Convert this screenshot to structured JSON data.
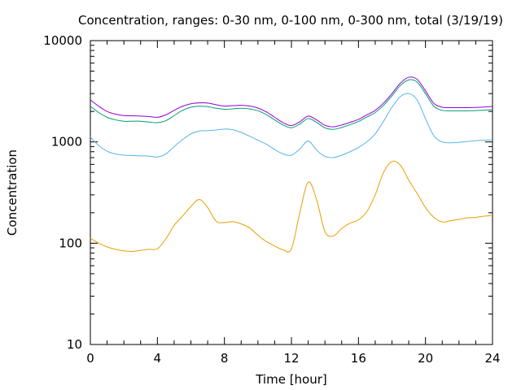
{
  "chart_data": {
    "type": "line",
    "title": "Concentration, ranges: 0-30 nm, 0-100 nm, 0-300 nm, total (3/19/19)",
    "xlabel": "Time [hour]",
    "ylabel": "Concentration",
    "xlim": [
      0,
      24
    ],
    "ylim": [
      10,
      10000
    ],
    "yscale": "log",
    "grid": false,
    "legend": "none",
    "x_ticks": [
      "0",
      "4",
      "8",
      "12",
      "16",
      "20",
      "24"
    ],
    "y_ticks": [
      "10",
      "100",
      "1000",
      "10000"
    ],
    "x": [
      0,
      0.5,
      1,
      1.5,
      2,
      2.5,
      3,
      3.5,
      4,
      4.5,
      5,
      5.5,
      6,
      6.5,
      7,
      7.5,
      8,
      8.5,
      9,
      9.5,
      10,
      10.5,
      11,
      11.5,
      12,
      12.5,
      13,
      13.5,
      14,
      14.5,
      15,
      15.5,
      16,
      16.5,
      17,
      17.5,
      18,
      18.5,
      19,
      19.5,
      20,
      20.5,
      21,
      21.5,
      22,
      22.5,
      23,
      23.5,
      24
    ],
    "series": [
      {
        "color": "#e69f00",
        "values": [
          112,
          100,
          92,
          87,
          84,
          83,
          85,
          87,
          88,
          110,
          150,
          185,
          230,
          270,
          225,
          165,
          160,
          163,
          155,
          142,
          120,
          104,
          94,
          86,
          88,
          200,
          400,
          270,
          130,
          118,
          140,
          158,
          170,
          205,
          300,
          500,
          640,
          590,
          420,
          310,
          225,
          180,
          162,
          167,
          172,
          178,
          180,
          185,
          188
        ]
      },
      {
        "color": "#56b4e9",
        "values": [
          1120,
          920,
          810,
          760,
          740,
          735,
          728,
          725,
          710,
          760,
          900,
          1050,
          1200,
          1280,
          1290,
          1310,
          1340,
          1320,
          1240,
          1140,
          1040,
          950,
          840,
          760,
          740,
          850,
          1020,
          830,
          720,
          700,
          740,
          800,
          880,
          1000,
          1200,
          1600,
          2200,
          2800,
          3000,
          2600,
          1700,
          1150,
          1000,
          980,
          990,
          1010,
          1030,
          1040,
          1050
        ]
      },
      {
        "color": "#009e73",
        "values": [
          2250,
          1950,
          1750,
          1650,
          1600,
          1600,
          1600,
          1570,
          1550,
          1620,
          1820,
          2050,
          2200,
          2250,
          2230,
          2150,
          2100,
          2120,
          2150,
          2120,
          2030,
          1860,
          1650,
          1470,
          1380,
          1500,
          1700,
          1560,
          1380,
          1330,
          1390,
          1480,
          1590,
          1760,
          1950,
          2300,
          2850,
          3600,
          4100,
          3900,
          3000,
          2250,
          2050,
          2030,
          2030,
          2030,
          2040,
          2060,
          2080
        ]
      },
      {
        "color": "#9400d3",
        "values": [
          2600,
          2250,
          2000,
          1880,
          1820,
          1810,
          1800,
          1780,
          1750,
          1850,
          2050,
          2250,
          2380,
          2430,
          2420,
          2330,
          2260,
          2280,
          2300,
          2260,
          2160,
          1980,
          1750,
          1550,
          1450,
          1580,
          1800,
          1650,
          1460,
          1410,
          1470,
          1560,
          1670,
          1850,
          2050,
          2420,
          3000,
          3800,
          4350,
          4150,
          3200,
          2400,
          2200,
          2180,
          2180,
          2180,
          2190,
          2210,
          2240
        ]
      }
    ]
  }
}
